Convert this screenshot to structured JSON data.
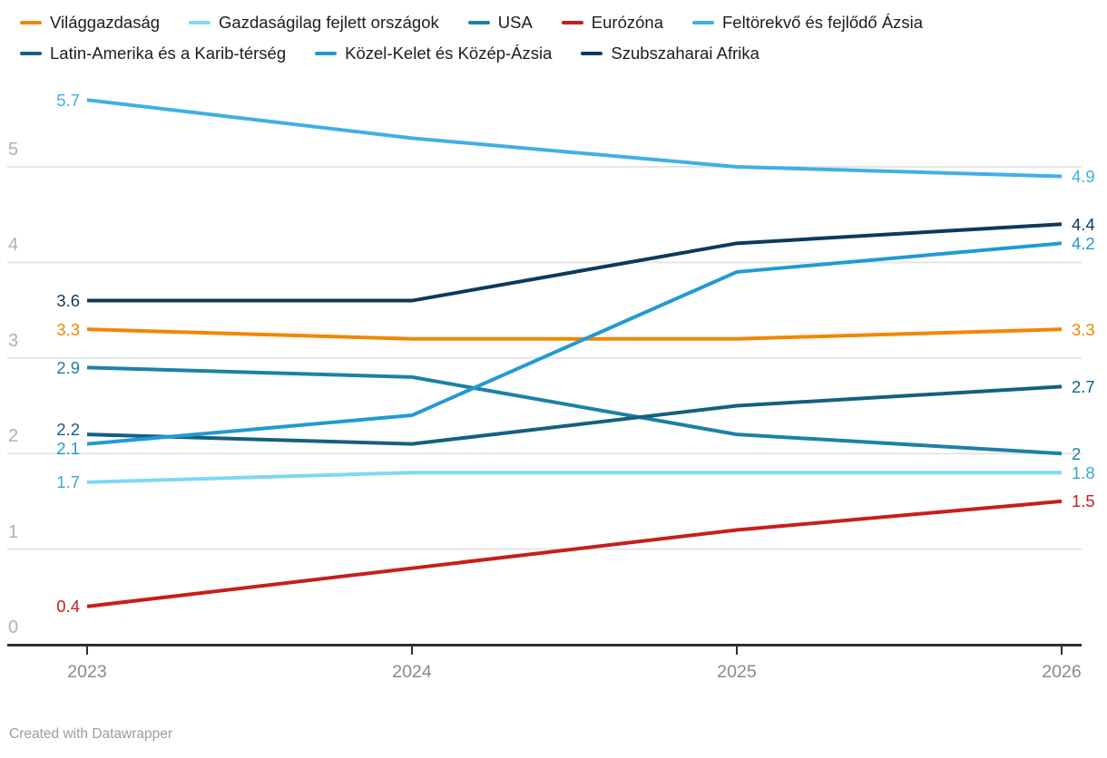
{
  "chart_data": {
    "type": "line",
    "x": [
      "2023",
      "2024",
      "2025",
      "2026"
    ],
    "series": [
      {
        "name": "Világgazdaság",
        "color": "#f18700",
        "values": [
          3.3,
          3.2,
          3.2,
          3.3
        ],
        "start_label": "3.3",
        "end_label": "3.3"
      },
      {
        "name": "Gazdaságilag fejlett országok",
        "color": "#7ed8f2",
        "label_color": "#38a7cd",
        "values": [
          1.7,
          1.8,
          1.8,
          1.8
        ],
        "start_label": "1.7",
        "end_label": "1.8"
      },
      {
        "name": "USA",
        "color": "#1d81a5",
        "values": [
          2.9,
          2.8,
          2.2,
          2.0
        ],
        "start_label": "2.9",
        "end_label": "2"
      },
      {
        "name": "Eurózóna",
        "color": "#c71e1d",
        "values": [
          0.4,
          0.8,
          1.2,
          1.5
        ],
        "start_label": "0.4",
        "end_label": "1.5"
      },
      {
        "name": "Feltörekvő és fejlődő Ázsia",
        "color": "#3fb0e4",
        "values": [
          5.7,
          5.3,
          5.0,
          4.9
        ],
        "start_label": "5.7",
        "end_label": "4.9"
      },
      {
        "name": "Latin-Amerika és a Karib-térség",
        "color": "#15607f",
        "values": [
          2.2,
          2.1,
          2.5,
          2.7
        ],
        "start_label": "2.2",
        "end_label": "2.7"
      },
      {
        "name": "Közel-Kelet és Közép-Ázsia",
        "color": "#229ad2",
        "values": [
          2.1,
          2.4,
          3.9,
          4.2
        ],
        "start_label": "2.1",
        "end_label": "4.2"
      },
      {
        "name": "Szubszaharai Afrika",
        "color": "#0b3a5e",
        "values": [
          3.6,
          3.6,
          4.2,
          4.4
        ],
        "start_label": "3.6",
        "end_label": "4.4"
      }
    ],
    "yticks": [
      {
        "label": "0",
        "value": 0
      },
      {
        "label": "1",
        "value": 1
      },
      {
        "label": "2",
        "value": 2
      },
      {
        "label": "3",
        "value": 3
      },
      {
        "label": "4",
        "value": 4
      },
      {
        "label": "5",
        "value": 5
      }
    ],
    "ylim": [
      0,
      6
    ],
    "grid": true,
    "legend_position": "top",
    "grid_color": "#e5e5e5",
    "axis_color": "#2f2f2f",
    "ytick_color": "#b1b1b1",
    "xtick_color": "#8a8a8a"
  },
  "footer": {
    "credit": "Created with Datawrapper"
  }
}
